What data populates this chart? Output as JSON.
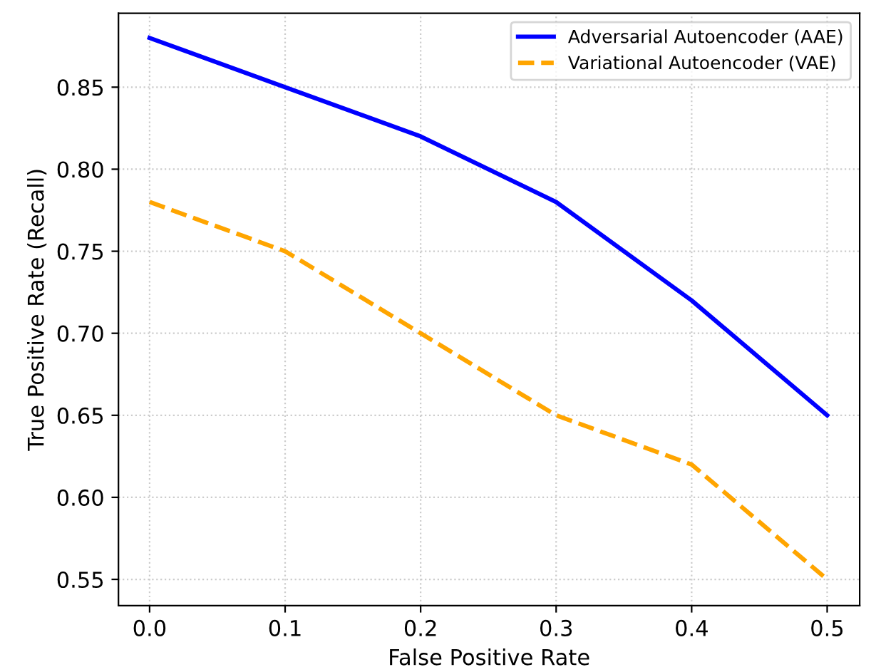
{
  "chart_data": {
    "type": "line",
    "xlabel": "False Positive Rate",
    "ylabel": "True Positive Rate (Recall)",
    "x": [
      0.0,
      0.1,
      0.2,
      0.3,
      0.4,
      0.5
    ],
    "series": [
      {
        "name": "Adversarial Autoencoder (AAE)",
        "color": "#0000ff",
        "line_style": "solid",
        "values": [
          0.88,
          0.85,
          0.82,
          0.78,
          0.72,
          0.65
        ]
      },
      {
        "name": "Variational Autoencoder (VAE)",
        "color": "#ffa500",
        "line_style": "dashed",
        "values": [
          0.78,
          0.75,
          0.7,
          0.65,
          0.62,
          0.55
        ]
      }
    ],
    "xlim": [
      -0.023,
      0.524
    ],
    "ylim": [
      0.534,
      0.895
    ],
    "xticks": [
      {
        "value": 0.0,
        "label": "0.0"
      },
      {
        "value": 0.1,
        "label": "0.1"
      },
      {
        "value": 0.2,
        "label": "0.2"
      },
      {
        "value": 0.3,
        "label": "0.3"
      },
      {
        "value": 0.4,
        "label": "0.4"
      },
      {
        "value": 0.5,
        "label": "0.5"
      }
    ],
    "yticks": [
      {
        "value": 0.55,
        "label": "0.55"
      },
      {
        "value": 0.6,
        "label": "0.60"
      },
      {
        "value": 0.65,
        "label": "0.65"
      },
      {
        "value": 0.7,
        "label": "0.70"
      },
      {
        "value": 0.75,
        "label": "0.75"
      },
      {
        "value": 0.8,
        "label": "0.80"
      },
      {
        "value": 0.85,
        "label": "0.85"
      }
    ],
    "grid": true,
    "legend": "top right",
    "marker": "none"
  }
}
